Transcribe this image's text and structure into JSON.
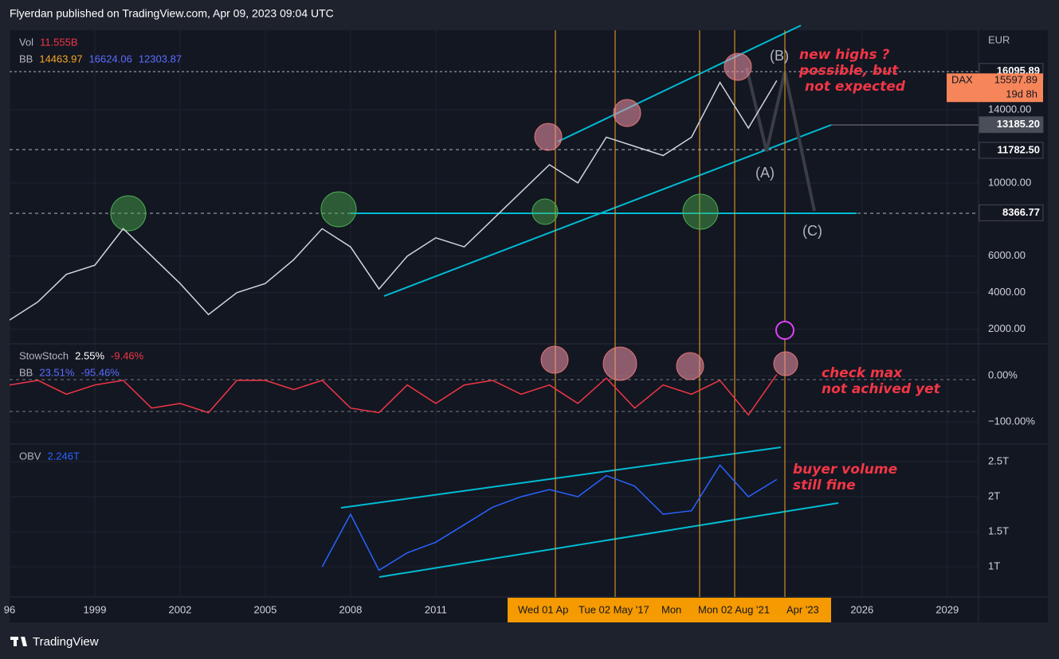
{
  "header": "Flyerdan published on TradingView.com, Apr 09, 2023 09:04 UTC",
  "footer": "TradingView",
  "currency": "EUR",
  "time_markers": [
    "Wed 01 Ap",
    "Tue 02 May '17",
    "Mon",
    "Mon 02 Aug '21",
    "Apr '23"
  ],
  "annotations": {
    "highs": [
      "new highs ?",
      "possible, but",
      "not expected"
    ],
    "stoch": [
      "check max",
      "not achived yet"
    ],
    "obv": [
      "buyer volume",
      "still fine"
    ],
    "waves": [
      "(A)",
      "(B)",
      "(C)"
    ]
  },
  "chart_data": [
    {
      "type": "line",
      "xlim": [
        1996,
        2030.1
      ],
      "ylim": [
        1200,
        18350
      ],
      "yticks": [
        {
          "value": 2000,
          "label": "2000.00"
        },
        {
          "value": 4000,
          "label": "4000.00"
        },
        {
          "value": 6000,
          "label": "6000.00"
        },
        {
          "value": 10000,
          "label": "10000.00"
        },
        {
          "value": 14000,
          "label": "14000.00"
        }
      ],
      "legend": [
        [
          {
            "text": "Vol",
            "color": "#b2b5be"
          },
          {
            "text": "11.555B",
            "color": "#f23645"
          }
        ],
        [
          {
            "text": "BB",
            "color": "#b2b5be"
          },
          {
            "text": "14463.97",
            "color": "#f5a623"
          },
          {
            "text": "16624.06",
            "color": "#5b6cff"
          },
          {
            "text": "12303.87",
            "color": "#5b6cff"
          }
        ]
      ],
      "price_labels": [
        {
          "value": 16095.89,
          "label": "16095.89",
          "bg": "#131722",
          "fg": "#ffffff"
        },
        {
          "value": 13185.2,
          "label": "13185.20",
          "bg": "#4a4e59",
          "fg": "#ffffff"
        },
        {
          "value": 11782.5,
          "label": "11782.50",
          "bg": "#131722",
          "fg": "#ffffff"
        },
        {
          "value": 8366.77,
          "label": "8366.77",
          "bg": "#131722",
          "fg": "#ffffff"
        }
      ],
      "last_label": {
        "name": "DAX",
        "value": 15597.89,
        "label": "15597.89",
        "countdown": "19d 8h",
        "bg": "#f7855a"
      },
      "x": [
        1996,
        1997,
        1998,
        1999,
        2000,
        2001,
        2002,
        2003,
        2004,
        2005,
        2006,
        2007,
        2008,
        2009,
        2010,
        2011,
        2012,
        2013,
        2014,
        2015,
        2016,
        2017,
        2018,
        2019,
        2020,
        2021,
        2022,
        2023
      ],
      "series": [
        {
          "name": "DAX",
          "color": "#d1d4dc",
          "values": [
            2500,
            3500,
            5000,
            5500,
            7500,
            6000,
            4500,
            2800,
            4000,
            4500,
            5800,
            7500,
            6500,
            4200,
            6000,
            7000,
            6500,
            8000,
            9500,
            11000,
            10000,
            12500,
            12000,
            11500,
            12500,
            15500,
            13000,
            15597.89
          ]
        }
      ]
    },
    {
      "type": "line",
      "xlim": [
        1996,
        2030.1
      ],
      "ylim": [
        -148,
        69
      ],
      "yticks": [
        {
          "value": 0,
          "label": "0.00%"
        },
        {
          "value": -100,
          "label": "−100.00%"
        }
      ],
      "legend": [
        [
          {
            "text": "StowStoch",
            "color": "#b2b5be"
          },
          {
            "text": "2.55%",
            "color": "#ffffff"
          },
          {
            "text": "-9.46%",
            "color": "#f23645"
          }
        ],
        [
          {
            "text": "BB",
            "color": "#b2b5be"
          },
          {
            "text": "23.51%",
            "color": "#5b6cff"
          },
          {
            "text": "-95.46%",
            "color": "#5b6cff"
          }
        ]
      ],
      "x": [
        1996,
        1997,
        1998,
        1999,
        2000,
        2001,
        2002,
        2003,
        2004,
        2005,
        2006,
        2007,
        2008,
        2009,
        2010,
        2011,
        2012,
        2013,
        2014,
        2015,
        2016,
        2017,
        2018,
        2019,
        2020,
        2021,
        2022,
        2023
      ],
      "series": [
        {
          "name": "StowStoch",
          "color": "#f23645",
          "values": [
            -20,
            -10,
            -40,
            -20,
            -10,
            -70,
            -60,
            -80,
            -10,
            -10,
            -30,
            -10,
            -70,
            -80,
            -20,
            -60,
            -20,
            -10,
            -40,
            -20,
            -60,
            -5,
            -70,
            -20,
            -40,
            -10,
            -85,
            2.55
          ]
        }
      ]
    },
    {
      "type": "line",
      "xlim": [
        1996,
        2030.1
      ],
      "ylim": [
        0.57,
        2.75
      ],
      "yticks": [
        {
          "value": 2.5,
          "label": "2.5T"
        },
        {
          "value": 2,
          "label": "2T"
        },
        {
          "value": 1.5,
          "label": "1.5T"
        },
        {
          "value": 1,
          "label": "1T"
        }
      ],
      "xticks": [
        {
          "value": 1996,
          "label": "96"
        },
        1999,
        2002,
        2005,
        2008,
        2011,
        2026,
        2029
      ],
      "legend": [
        [
          {
            "text": "OBV",
            "color": "#b2b5be"
          },
          {
            "text": "2.246T",
            "color": "#2962ff"
          }
        ]
      ],
      "x": [
        2007,
        2008,
        2009,
        2010,
        2011,
        2012,
        2013,
        2014,
        2015,
        2016,
        2017,
        2018,
        2019,
        2020,
        2021,
        2022,
        2023
      ],
      "series": [
        {
          "name": "OBV",
          "color": "#2962ff",
          "values": [
            1.0,
            1.75,
            0.95,
            1.2,
            1.35,
            1.6,
            1.85,
            2.0,
            2.1,
            2.0,
            2.3,
            2.15,
            1.75,
            1.8,
            2.45,
            2.0,
            2.246
          ]
        }
      ]
    }
  ]
}
